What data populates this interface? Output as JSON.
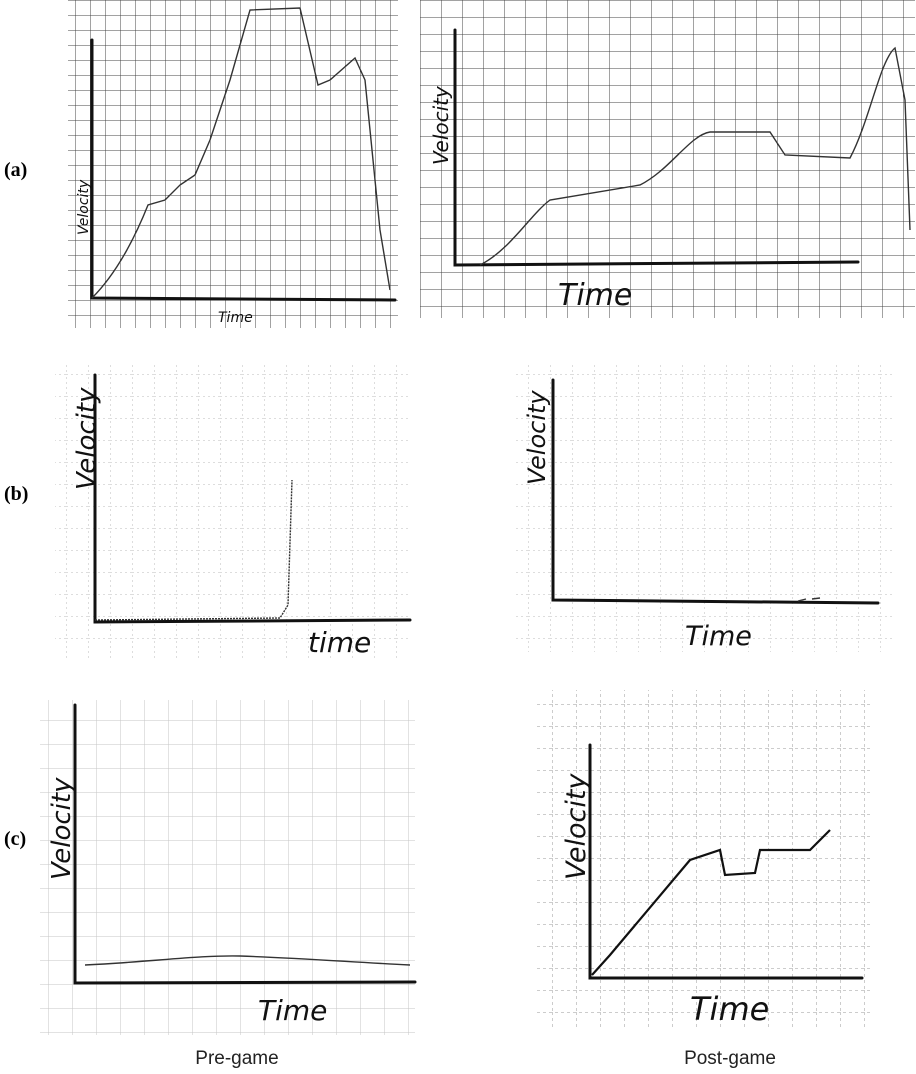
{
  "rows": [
    {
      "label": "(a)",
      "panels": [
        {
          "y_label": "Velocity",
          "x_label": "Time"
        },
        {
          "y_label": "Velocity",
          "x_label": "Time"
        }
      ]
    },
    {
      "label": "(b)",
      "panels": [
        {
          "y_label": "Velocity",
          "x_label": "time"
        },
        {
          "y_label": "Velocity",
          "x_label": "Time"
        }
      ]
    },
    {
      "label": "(c)",
      "panels": [
        {
          "y_label": "Velocity",
          "x_label": "Time"
        },
        {
          "y_label": "Velocity",
          "x_label": "Time"
        }
      ]
    }
  ],
  "columns": [
    "Pre-game",
    "Post-game"
  ]
}
